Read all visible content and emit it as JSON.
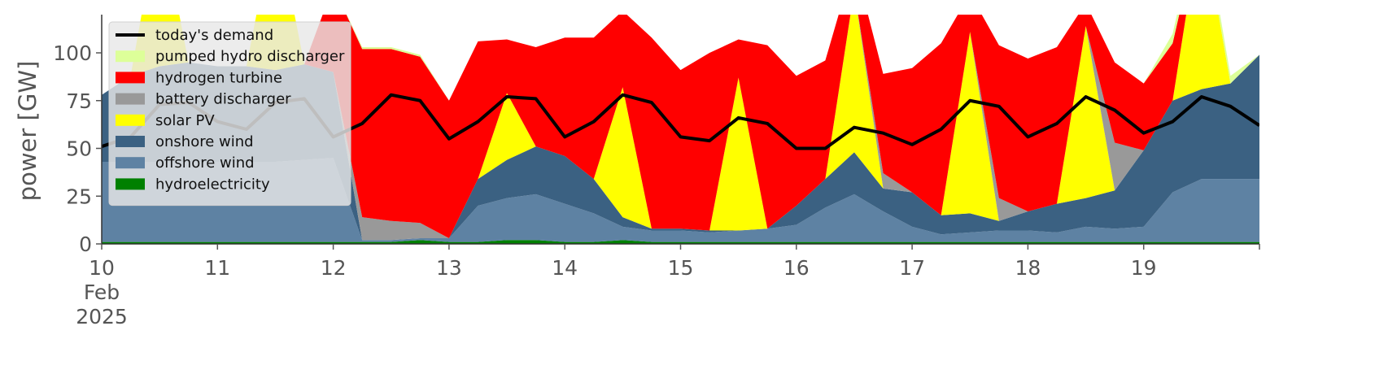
{
  "chart_data": {
    "type": "area",
    "title": "",
    "xlabel": "",
    "ylabel": "power [GW]",
    "ylim": [
      0,
      120
    ],
    "y_ticks": [
      0,
      25,
      50,
      75,
      100
    ],
    "x_range": [
      "2025-02-10T00:00",
      "2025-02-20T00:00"
    ],
    "x_ticks": [
      {
        "date": "2025-02-10",
        "lines": [
          "10",
          "Feb",
          "2025"
        ]
      },
      {
        "date": "2025-02-11",
        "lines": [
          "11"
        ]
      },
      {
        "date": "2025-02-12",
        "lines": [
          "12"
        ]
      },
      {
        "date": "2025-02-13",
        "lines": [
          "13"
        ]
      },
      {
        "date": "2025-02-14",
        "lines": [
          "14"
        ]
      },
      {
        "date": "2025-02-15",
        "lines": [
          "15"
        ]
      },
      {
        "date": "2025-02-16",
        "lines": [
          "16"
        ]
      },
      {
        "date": "2025-02-17",
        "lines": [
          "17"
        ]
      },
      {
        "date": "2025-02-18",
        "lines": [
          "18"
        ]
      },
      {
        "date": "2025-02-19",
        "lines": [
          "19"
        ]
      }
    ],
    "grid": false,
    "legend_position": "top-left",
    "x": [
      "2025-02-10T00:00",
      "2025-02-10T06:00",
      "2025-02-10T12:00",
      "2025-02-10T18:00",
      "2025-02-11T00:00",
      "2025-02-11T06:00",
      "2025-02-11T12:00",
      "2025-02-11T18:00",
      "2025-02-12T00:00",
      "2025-02-12T06:00",
      "2025-02-12T12:00",
      "2025-02-12T18:00",
      "2025-02-13T00:00",
      "2025-02-13T06:00",
      "2025-02-13T12:00",
      "2025-02-13T18:00",
      "2025-02-14T00:00",
      "2025-02-14T06:00",
      "2025-02-14T12:00",
      "2025-02-14T18:00",
      "2025-02-15T00:00",
      "2025-02-15T06:00",
      "2025-02-15T12:00",
      "2025-02-15T18:00",
      "2025-02-16T00:00",
      "2025-02-16T06:00",
      "2025-02-16T12:00",
      "2025-02-16T18:00",
      "2025-02-17T00:00",
      "2025-02-17T06:00",
      "2025-02-17T12:00",
      "2025-02-17T18:00",
      "2025-02-18T00:00",
      "2025-02-18T06:00",
      "2025-02-18T12:00",
      "2025-02-18T18:00",
      "2025-02-19T00:00",
      "2025-02-19T06:00",
      "2025-02-19T12:00",
      "2025-02-19T18:00",
      "2025-02-20T00:00"
    ],
    "series": [
      {
        "name": "hydroelectricity",
        "color": "#008000",
        "values": [
          1,
          1,
          1,
          1,
          1,
          1,
          1,
          1,
          1,
          1,
          1,
          2,
          1,
          1,
          2,
          2,
          1,
          1,
          2,
          1,
          1,
          1,
          1,
          1,
          1,
          1,
          1,
          1,
          1,
          1,
          1,
          1,
          1,
          1,
          1,
          1,
          1,
          1,
          1,
          1,
          1
        ]
      },
      {
        "name": "offshore wind",
        "color": "#5e82a3",
        "values": [
          42,
          42,
          42,
          42,
          42,
          42,
          42,
          43,
          44,
          1,
          1,
          1,
          2,
          19,
          22,
          24,
          20,
          15,
          7,
          6,
          6,
          5,
          6,
          7,
          9,
          18,
          25,
          16,
          8,
          4,
          5,
          6,
          6,
          5,
          8,
          7,
          8,
          26,
          33,
          33,
          33
        ]
      },
      {
        "name": "onshore wind",
        "color": "#3b6182",
        "values": [
          35,
          45,
          50,
          52,
          50,
          50,
          48,
          50,
          45,
          0,
          0,
          0,
          0,
          14,
          20,
          25,
          25,
          18,
          5,
          1,
          1,
          1,
          0,
          0,
          10,
          15,
          22,
          12,
          18,
          10,
          10,
          5,
          10,
          15,
          15,
          20,
          40,
          48,
          47,
          50,
          65
        ]
      },
      {
        "name": "solar PV",
        "color": "#ffff00",
        "values": [
          0,
          0,
          80,
          0,
          0,
          0,
          80,
          0,
          0,
          0,
          0,
          0,
          0,
          0,
          35,
          0,
          0,
          0,
          68,
          0,
          0,
          0,
          80,
          0,
          0,
          0,
          85,
          0,
          0,
          0,
          95,
          0,
          0,
          0,
          90,
          0,
          0,
          0,
          90,
          0,
          0
        ]
      },
      {
        "name": "battery discharger",
        "color": "#999999",
        "values": [
          0,
          0,
          0,
          0,
          0,
          0,
          0,
          0,
          0,
          12,
          10,
          8,
          0,
          0,
          0,
          0,
          0,
          0,
          0,
          0,
          0,
          0,
          0,
          0,
          0,
          0,
          0,
          8,
          0,
          0,
          0,
          12,
          0,
          0,
          0,
          25,
          0,
          0,
          0,
          0,
          0
        ]
      },
      {
        "name": "hydrogen turbine",
        "color": "#ff0000",
        "values": [
          0,
          0,
          0,
          0,
          0,
          0,
          0,
          0,
          45,
          88,
          90,
          87,
          72,
          72,
          28,
          52,
          62,
          74,
          40,
          100,
          83,
          93,
          20,
          96,
          68,
          62,
          15,
          52,
          65,
          90,
          20,
          80,
          80,
          82,
          12,
          42,
          35,
          30,
          0,
          0,
          0
        ]
      },
      {
        "name": "pumped hydro discharger",
        "color": "#ddff99",
        "values": [
          0,
          0,
          0,
          0,
          0,
          0,
          0,
          0,
          0,
          1,
          1,
          1,
          0,
          0,
          0,
          0,
          0,
          0,
          0,
          0,
          0,
          0,
          0,
          0,
          0,
          0,
          0,
          0,
          0,
          0,
          0,
          0,
          0,
          0,
          0,
          0,
          0,
          5,
          6,
          4,
          0
        ]
      }
    ],
    "demand": {
      "name": "today's demand",
      "color": "#000000",
      "values": [
        51,
        56,
        73,
        74,
        64,
        60,
        74,
        76,
        56,
        63,
        78,
        75,
        55,
        64,
        77,
        76,
        56,
        64,
        78,
        74,
        56,
        54,
        66,
        63,
        50,
        50,
        61,
        58,
        52,
        60,
        75,
        72,
        56,
        63,
        77,
        70,
        58,
        64,
        77,
        72,
        62
      ]
    }
  }
}
